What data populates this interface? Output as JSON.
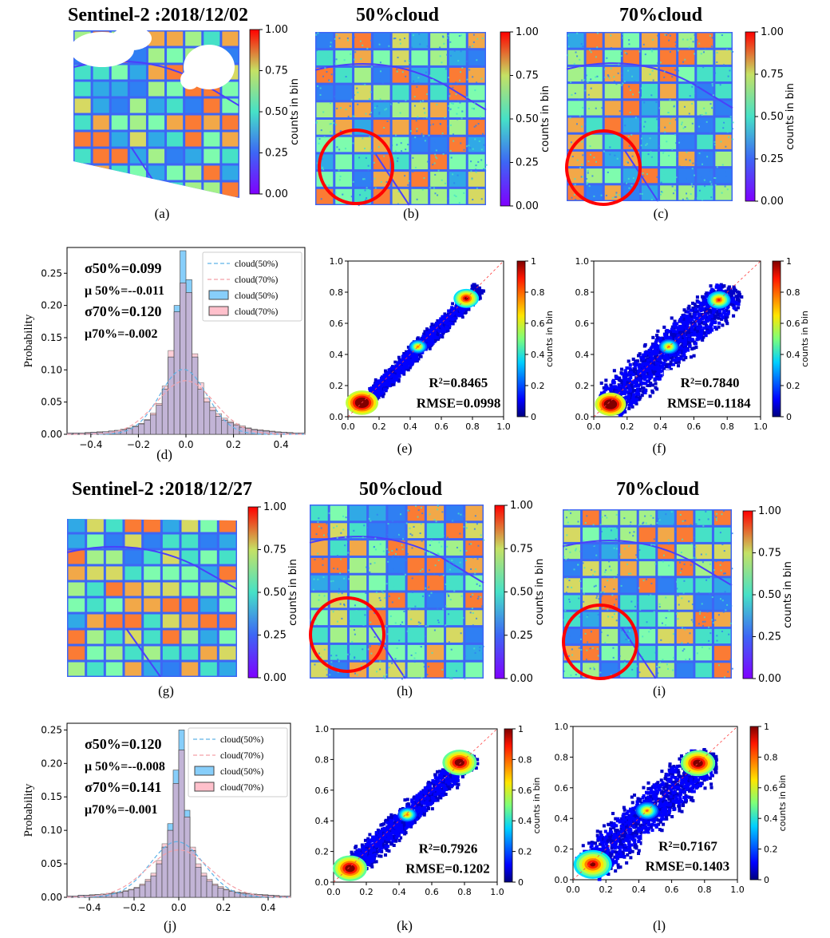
{
  "titles": {
    "row1_date": "Sentinel-2 :2018/12/02",
    "row1_50": "50%cloud",
    "row1_70": "70%cloud",
    "row2_date": "Sentinel-2 :2018/12/27",
    "row2_50": "50%cloud",
    "row2_70": "70%cloud"
  },
  "sublabels": [
    "(a)",
    "(b)",
    "(c)",
    "(d)",
    "(e)",
    "(f)",
    "(g)",
    "(h)",
    "(i)",
    "(j)",
    "(k)",
    "(l)"
  ],
  "colorbar": {
    "label": "counts in bin",
    "map_ticks": [
      "1.00",
      "0.75",
      "0.50",
      "0.25",
      "0.00"
    ],
    "scatter_ticks": [
      "1",
      "0.8",
      "0.6",
      "0.4",
      "0.2",
      "0"
    ]
  },
  "legend": [
    "cloud(50%)",
    "cloud(70%)",
    "cloud(50%)",
    "cloud(70%)"
  ],
  "chart_data": [
    {
      "id": "d",
      "type": "bar",
      "ylabel": "Probability",
      "xlim": [
        -0.5,
        0.5
      ],
      "ylim": [
        0,
        0.29
      ],
      "xticks": [
        "-0.4",
        "-0.2",
        "0.0",
        "0.2",
        "0.4"
      ],
      "yticks": [
        "0.00",
        "0.05",
        "0.10",
        "0.15",
        "0.20",
        "0.25"
      ],
      "bin_width": 0.025,
      "bin_centers": [
        -0.4875,
        -0.4625,
        -0.4375,
        -0.4125,
        -0.3875,
        -0.3625,
        -0.3375,
        -0.3125,
        -0.2875,
        -0.2625,
        -0.2375,
        -0.2125,
        -0.1875,
        -0.1625,
        -0.1375,
        -0.1125,
        -0.0875,
        -0.0625,
        -0.0375,
        -0.0125,
        0.0125,
        0.0375,
        0.0625,
        0.0875,
        0.1125,
        0.1375,
        0.1625,
        0.1875,
        0.2125,
        0.2375,
        0.2625,
        0.2875,
        0.3125,
        0.3375,
        0.3625,
        0.3875,
        0.4125,
        0.4375,
        0.4625,
        0.4875
      ],
      "series": [
        {
          "name": "cloud(50%)",
          "values": [
            0.002,
            0.002,
            0.002,
            0.002,
            0.003,
            0.003,
            0.004,
            0.005,
            0.006,
            0.007,
            0.009,
            0.012,
            0.016,
            0.022,
            0.03,
            0.045,
            0.07,
            0.12,
            0.2,
            0.285,
            0.24,
            0.12,
            0.07,
            0.05,
            0.037,
            0.028,
            0.022,
            0.018,
            0.014,
            0.011,
            0.009,
            0.007,
            0.006,
            0.005,
            0.004,
            0.003,
            0.003,
            0.002,
            0.002,
            0.002
          ]
        },
        {
          "name": "cloud(70%)",
          "values": [
            0.002,
            0.002,
            0.002,
            0.003,
            0.003,
            0.004,
            0.004,
            0.005,
            0.006,
            0.008,
            0.01,
            0.013,
            0.017,
            0.023,
            0.033,
            0.048,
            0.075,
            0.13,
            0.19,
            0.235,
            0.22,
            0.125,
            0.08,
            0.056,
            0.042,
            0.032,
            0.025,
            0.02,
            0.016,
            0.013,
            0.01,
            0.008,
            0.007,
            0.006,
            0.005,
            0.004,
            0.003,
            0.003,
            0.002,
            0.002
          ]
        }
      ],
      "fits": [
        {
          "name": "cloud(50%)",
          "mu": -0.011,
          "sigma": 0.099
        },
        {
          "name": "cloud(70%)",
          "mu": -0.002,
          "sigma": 0.12
        }
      ],
      "stats": [
        "σ50%=0.099",
        "μ 50%=--0.011",
        "σ70%=0.120",
        "μ70%=-0.002"
      ]
    },
    {
      "id": "e",
      "type": "heatmap",
      "xlim": [
        0,
        1
      ],
      "ylim": [
        0,
        1
      ],
      "xticks": [
        "0.0",
        "0.2",
        "0.4",
        "0.6",
        "0.8",
        "1.0"
      ],
      "yticks": [
        "0.0",
        "0.2",
        "0.4",
        "0.6",
        "0.8",
        "1.0"
      ],
      "r2": "R²=0.8465",
      "rmse": "RMSE=0.0998"
    },
    {
      "id": "f",
      "type": "heatmap",
      "xlim": [
        0,
        1
      ],
      "ylim": [
        0,
        1
      ],
      "xticks": [
        "0.0",
        "0.2",
        "0.4",
        "0.6",
        "0.8",
        "1.0"
      ],
      "yticks": [
        "0.0",
        "0.2",
        "0.4",
        "0.6",
        "0.8",
        "1.0"
      ],
      "r2": "R²=0.7840",
      "rmse": "RMSE=0.1184"
    },
    {
      "id": "j",
      "type": "bar",
      "ylabel": "Probability",
      "xlim": [
        -0.5,
        0.5
      ],
      "ylim": [
        0,
        0.26
      ],
      "xticks": [
        "-0.4",
        "-0.2",
        "0.0",
        "0.2",
        "0.4"
      ],
      "yticks": [
        "0.00",
        "0.05",
        "0.10",
        "0.15",
        "0.20",
        "0.25"
      ],
      "bin_width": 0.025,
      "bin_centers": [
        -0.4875,
        -0.4625,
        -0.4375,
        -0.4125,
        -0.3875,
        -0.3625,
        -0.3375,
        -0.3125,
        -0.2875,
        -0.2625,
        -0.2375,
        -0.2125,
        -0.1875,
        -0.1625,
        -0.1375,
        -0.1125,
        -0.0875,
        -0.0625,
        -0.0375,
        -0.0125,
        0.0125,
        0.0375,
        0.0625,
        0.0875,
        0.1125,
        0.1375,
        0.1625,
        0.1875,
        0.2125,
        0.2375,
        0.2625,
        0.2875,
        0.3125,
        0.3375,
        0.3625,
        0.3875,
        0.4125,
        0.4375,
        0.4625,
        0.4875
      ],
      "series": [
        {
          "name": "cloud(50%)",
          "values": [
            0.002,
            0.002,
            0.003,
            0.003,
            0.003,
            0.004,
            0.004,
            0.005,
            0.006,
            0.007,
            0.009,
            0.011,
            0.014,
            0.018,
            0.024,
            0.032,
            0.05,
            0.075,
            0.11,
            0.19,
            0.25,
            0.13,
            0.07,
            0.045,
            0.032,
            0.024,
            0.018,
            0.014,
            0.011,
            0.009,
            0.007,
            0.006,
            0.005,
            0.004,
            0.004,
            0.003,
            0.003,
            0.002,
            0.002,
            0.002
          ]
        },
        {
          "name": "cloud(70%)",
          "values": [
            0.002,
            0.002,
            0.003,
            0.003,
            0.004,
            0.004,
            0.005,
            0.006,
            0.007,
            0.008,
            0.01,
            0.012,
            0.015,
            0.02,
            0.027,
            0.036,
            0.055,
            0.08,
            0.1,
            0.17,
            0.22,
            0.12,
            0.075,
            0.05,
            0.036,
            0.027,
            0.02,
            0.016,
            0.012,
            0.01,
            0.008,
            0.007,
            0.006,
            0.005,
            0.004,
            0.004,
            0.003,
            0.003,
            0.002,
            0.002
          ]
        }
      ],
      "fits": [
        {
          "name": "cloud(50%)",
          "mu": -0.008,
          "sigma": 0.12
        },
        {
          "name": "cloud(70%)",
          "mu": -0.001,
          "sigma": 0.141
        }
      ],
      "stats": [
        "σ50%=0.120",
        "μ 50%=--0.008",
        "σ70%=0.141",
        "μ70%=-0.001"
      ]
    },
    {
      "id": "k",
      "type": "heatmap",
      "xlim": [
        0,
        1
      ],
      "ylim": [
        0,
        1
      ],
      "xticks": [
        "0.0",
        "0.2",
        "0.4",
        "0.6",
        "0.8",
        "1.0"
      ],
      "yticks": [
        "0.0",
        "0.2",
        "0.4",
        "0.6",
        "0.8",
        "1.0"
      ],
      "r2": "R²=0.7926",
      "rmse": "RMSE=0.1202"
    },
    {
      "id": "l",
      "type": "heatmap",
      "xlim": [
        0,
        1
      ],
      "ylim": [
        0,
        1
      ],
      "xticks": [
        "0.0",
        "0.2",
        "0.4",
        "0.6",
        "0.8",
        "1.0"
      ],
      "yticks": [
        "0.0",
        "0.2",
        "0.4",
        "0.6",
        "0.8",
        "1.0"
      ],
      "r2": "R²=0.7167",
      "rmse": "RMSE=0.1403"
    }
  ]
}
